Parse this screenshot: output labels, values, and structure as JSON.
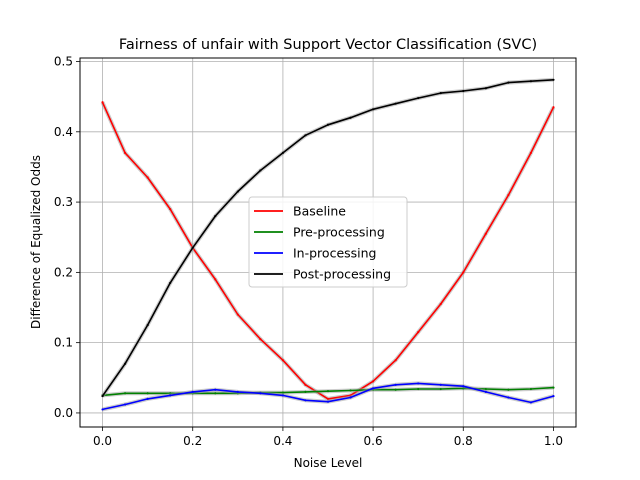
{
  "chart_data": {
    "type": "line",
    "title": "Fairness of unfair with Support Vector Classification (SVC)",
    "xlabel": "Noise Level",
    "ylabel": "Difference of Equalized Odds",
    "xlim": [
      -0.05,
      1.05
    ],
    "ylim": [
      -0.02,
      0.505
    ],
    "xticks": [
      0.0,
      0.2,
      0.4,
      0.6,
      0.8,
      1.0
    ],
    "xtick_labels": [
      "0.0",
      "0.2",
      "0.4",
      "0.6",
      "0.8",
      "1.0"
    ],
    "yticks": [
      0.0,
      0.1,
      0.2,
      0.3,
      0.4,
      0.5
    ],
    "ytick_labels": [
      "0.0",
      "0.1",
      "0.2",
      "0.3",
      "0.4",
      "0.5"
    ],
    "grid": true,
    "legend_position": "center",
    "x": [
      0.0,
      0.05,
      0.1,
      0.15,
      0.2,
      0.25,
      0.3,
      0.35,
      0.4,
      0.45,
      0.5,
      0.55,
      0.6,
      0.65,
      0.7,
      0.75,
      0.8,
      0.85,
      0.9,
      0.95,
      1.0
    ],
    "series": [
      {
        "name": "Baseline",
        "color": "#ff0000",
        "values": [
          0.442,
          0.37,
          0.335,
          0.29,
          0.235,
          0.19,
          0.14,
          0.105,
          0.075,
          0.04,
          0.02,
          0.025,
          0.045,
          0.075,
          0.115,
          0.155,
          0.2,
          0.255,
          0.31,
          0.37,
          0.435
        ]
      },
      {
        "name": "Pre-processing",
        "color": "#008000",
        "values": [
          0.025,
          0.028,
          0.028,
          0.028,
          0.028,
          0.028,
          0.028,
          0.029,
          0.029,
          0.03,
          0.031,
          0.032,
          0.033,
          0.033,
          0.034,
          0.034,
          0.035,
          0.034,
          0.033,
          0.034,
          0.036
        ]
      },
      {
        "name": "In-processing",
        "color": "#0000ff",
        "values": [
          0.005,
          0.012,
          0.02,
          0.025,
          0.03,
          0.033,
          0.03,
          0.028,
          0.025,
          0.018,
          0.016,
          0.022,
          0.035,
          0.04,
          0.042,
          0.04,
          0.038,
          0.03,
          0.022,
          0.015,
          0.024
        ]
      },
      {
        "name": "Post-processing",
        "color": "#000000",
        "values": [
          0.024,
          0.07,
          0.125,
          0.185,
          0.235,
          0.28,
          0.315,
          0.345,
          0.37,
          0.395,
          0.41,
          0.42,
          0.432,
          0.44,
          0.448,
          0.455,
          0.458,
          0.462,
          0.47,
          0.472,
          0.474
        ]
      }
    ]
  }
}
